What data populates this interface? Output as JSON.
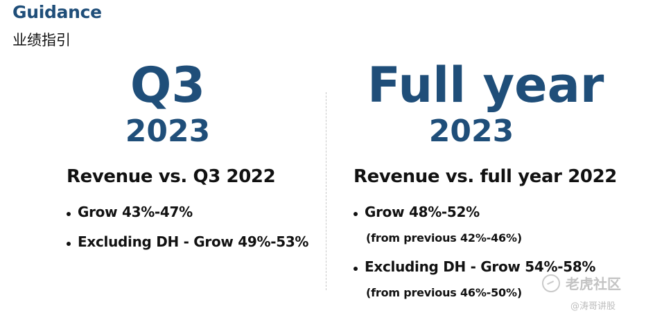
{
  "header": {
    "title": "Guidance",
    "subtitle": "业绩指引"
  },
  "q3": {
    "label": "Q3",
    "year": "2023",
    "heading": "Revenue vs. Q3 2022",
    "bullets": [
      "Grow 43%-47%",
      "Excluding DH - Grow 49%-53%"
    ]
  },
  "full_year": {
    "label": "Full year",
    "year": "2023",
    "heading": "Revenue vs. full year 2022",
    "bullets": [
      {
        "text": "Grow 48%-52%",
        "note": "(from previous 42%-46%)"
      },
      {
        "text": "Excluding DH - Grow 54%-58%",
        "note": "(from previous 46%-50%)"
      }
    ]
  },
  "watermark": {
    "brand": "老虎社区",
    "handle": "@涛哥讲股"
  },
  "colors": {
    "accent": "#1f4e79",
    "text": "#111111",
    "divider": "#c8c8c8",
    "watermark": "#bdbdbd"
  }
}
